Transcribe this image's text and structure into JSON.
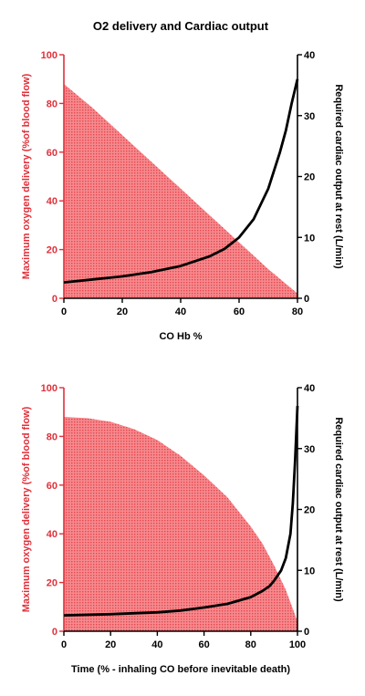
{
  "title": "O2 delivery and Cardiac output",
  "colors": {
    "area": "#f46a6e",
    "left_axis": "#e0303a",
    "right_axis": "#000000"
  },
  "chart_data": [
    {
      "type": "area",
      "xlabel": "CO Hb %",
      "ylabel_left": "Maximum oxygen delivery (%of blood flow)",
      "ylabel_right": "Required cardiac output at rest (L/min)",
      "xlim": [
        0,
        80
      ],
      "ylim_left": [
        0,
        100
      ],
      "ylim_right": [
        0,
        40
      ],
      "x_ticks": [
        0,
        20,
        40,
        60,
        80
      ],
      "y_ticks_left": [
        0,
        20,
        40,
        60,
        80,
        100
      ],
      "y_ticks_right": [
        0,
        10,
        20,
        30,
        40
      ],
      "series": [
        {
          "axis": "left",
          "kind": "area",
          "x": [
            0,
            10,
            20,
            30,
            40,
            50,
            60,
            70,
            80
          ],
          "y": [
            88,
            78,
            67,
            56,
            45,
            34,
            23,
            12,
            2
          ]
        },
        {
          "axis": "right",
          "kind": "line",
          "x": [
            0,
            10,
            20,
            30,
            40,
            50,
            55,
            60,
            65,
            70,
            72,
            74,
            76,
            78,
            80
          ],
          "y": [
            2.6,
            3.1,
            3.6,
            4.3,
            5.3,
            6.9,
            8.1,
            10,
            13,
            18,
            21,
            24,
            27.5,
            32,
            36
          ]
        }
      ]
    },
    {
      "type": "area",
      "xlabel": "Time (% - inhaling CO before inevitable death)",
      "ylabel_left": "Maximum oxygen delivery (%of blood flow)",
      "ylabel_right": "Required cardiac output at rest (L/min)",
      "xlim": [
        0,
        100
      ],
      "ylim_left": [
        0,
        100
      ],
      "ylim_right": [
        0,
        40
      ],
      "x_ticks": [
        0,
        20,
        40,
        60,
        80,
        100
      ],
      "y_ticks_left": [
        0,
        20,
        40,
        60,
        80,
        100
      ],
      "y_ticks_right": [
        0,
        10,
        20,
        30,
        40
      ],
      "series": [
        {
          "axis": "left",
          "kind": "area",
          "x": [
            0,
            10,
            20,
            30,
            40,
            50,
            60,
            70,
            80,
            85,
            90,
            95,
            100
          ],
          "y": [
            88,
            87.5,
            86,
            83,
            78.5,
            72,
            64,
            55,
            43,
            36,
            27,
            17,
            4
          ]
        },
        {
          "axis": "right",
          "kind": "line",
          "x": [
            0,
            20,
            40,
            50,
            60,
            70,
            80,
            85,
            88,
            90,
            93,
            95,
            97,
            98,
            99,
            100
          ],
          "y": [
            2.6,
            2.8,
            3.1,
            3.4,
            3.9,
            4.5,
            5.6,
            6.6,
            7.4,
            8.3,
            10,
            12,
            16,
            21,
            28,
            37
          ]
        }
      ]
    }
  ]
}
